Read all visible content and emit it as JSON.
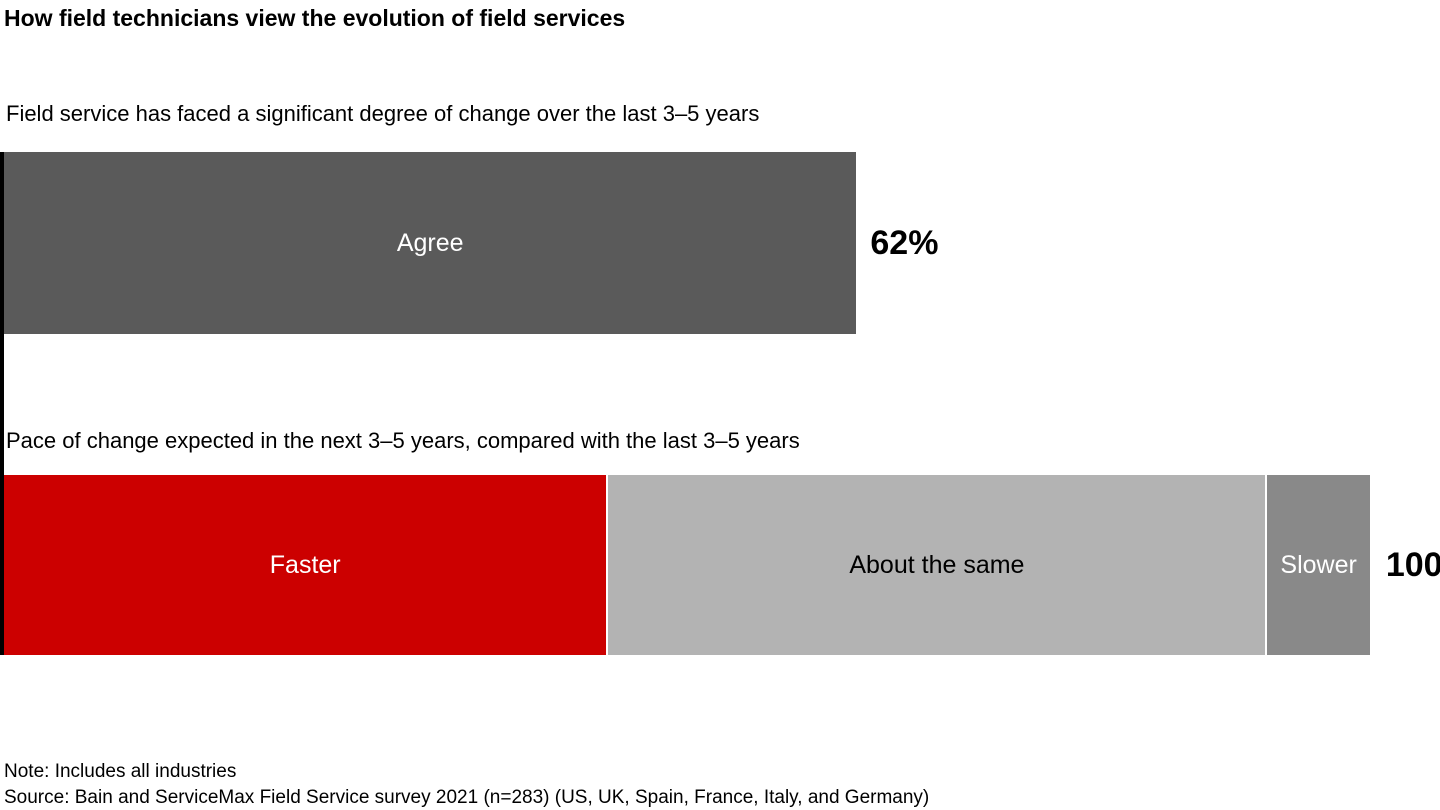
{
  "title": "How field technicians view the evolution of field services",
  "note": "Note: Includes all industries",
  "source": "Source: Bain and ServiceMax Field Service survey 2021 (n=283) (US, UK, Spain, France, Italy, and Germany)",
  "colors": {
    "axis": "#000000",
    "agree_bar": "#5A5A5A",
    "faster_segment": "#CC0000",
    "about_same_segment": "#B3B3B3",
    "slower_segment": "#898989",
    "label_on_dark": "#FFFFFF",
    "label_on_light": "#000000",
    "text": "#000000"
  },
  "chart_data": [
    {
      "type": "bar",
      "orientation": "horizontal",
      "question": "Field service has faced a significant degree of change over the last 3–5 years",
      "categories": [
        "Agree"
      ],
      "values": [
        62
      ],
      "unit": "%",
      "value_label": "62%",
      "bar_color": "#5A5A5A",
      "label_color": "#FFFFFF",
      "xlim": [
        0,
        100
      ],
      "width_pct": 62.4,
      "grid": false,
      "legend": "none"
    },
    {
      "type": "bar",
      "orientation": "horizontal",
      "stacked": true,
      "question": "Pace of change expected in the next 3–5 years, compared with the last 3–5 years",
      "total": 100,
      "total_label": "100",
      "xlim": [
        0,
        100
      ],
      "segment_values_shown": false,
      "values_estimated_from_widths": true,
      "segments": [
        {
          "label": "Faster",
          "value": 44,
          "width_pct": 44.1,
          "color": "#CC0000",
          "text_color": "#FFFFFF"
        },
        {
          "label": "About the same",
          "value": 48,
          "width_pct": 48.1,
          "color": "#B3B3B3",
          "text_color": "#000000"
        },
        {
          "label": "Slower",
          "value": 8,
          "width_pct": 7.5,
          "color": "#898989",
          "text_color": "#FFFFFF"
        }
      ],
      "grid": false,
      "legend": "none"
    }
  ]
}
